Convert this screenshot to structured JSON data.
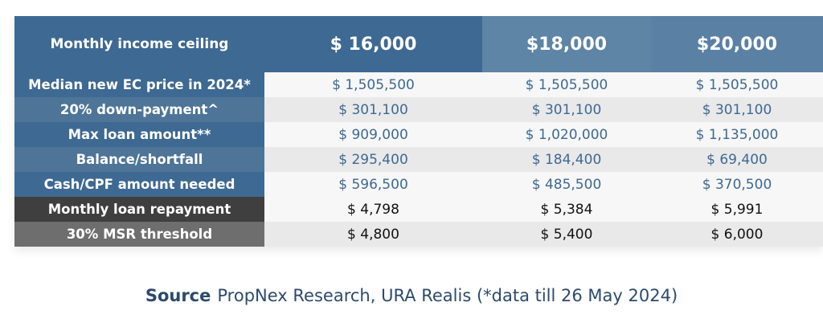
{
  "table": {
    "header": {
      "label": "Monthly income ceiling",
      "values": [
        "$ 16,000",
        "$18,000",
        "$20,000"
      ]
    },
    "rows": [
      {
        "label": "Median new EC price in 2024*",
        "values": [
          "$ 1,505,500",
          "$ 1,505,500",
          "$ 1,505,500"
        ]
      },
      {
        "label": "20% down-payment^",
        "values": [
          "$ 301,100",
          "$ 301,100",
          "$ 301,100"
        ]
      },
      {
        "label": "Max loan amount**",
        "values": [
          "$ 909,000",
          "$ 1,020,000",
          "$ 1,135,000"
        ]
      },
      {
        "label": "Balance/shortfall",
        "values": [
          "$ 295,400",
          "$ 184,400",
          "$ 69,400"
        ]
      },
      {
        "label": "Cash/CPF amount needed",
        "values": [
          "$ 596,500",
          "$ 485,500",
          "$ 370,500"
        ]
      },
      {
        "label": "Monthly loan repayment",
        "values": [
          "$ 4,798",
          "$ 5,384",
          "$ 5,991"
        ]
      },
      {
        "label": "30% MSR threshold",
        "values": [
          "$ 4,800",
          "$ 5,400",
          "$ 6,000"
        ]
      }
    ]
  },
  "source": {
    "label": "Source",
    "text": "PropNex Research, URA Realis (*data till 26 May 2024)"
  },
  "colors": {
    "header_blue": "#3e6992",
    "header_light_blue": "#5e84a6",
    "dark_label": "#3f3f3f",
    "value_blue": "#3e6992"
  }
}
